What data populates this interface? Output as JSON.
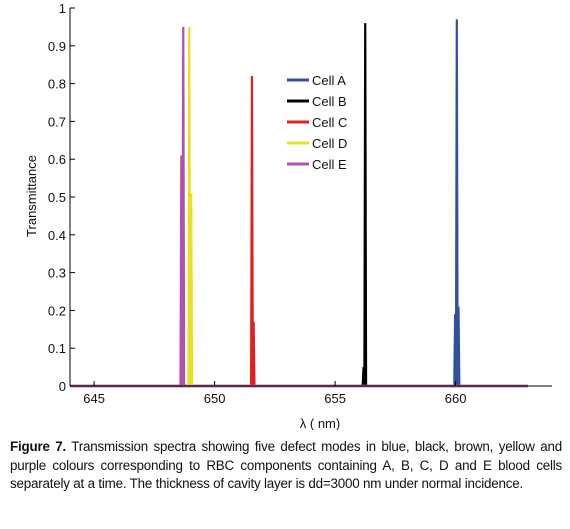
{
  "chart_data": {
    "type": "line",
    "title": "",
    "xlabel": "λ ( nm)",
    "ylabel": "Transmittance",
    "xlim": [
      644,
      664
    ],
    "ylim": [
      0,
      1
    ],
    "xticks": [
      645,
      650,
      655,
      660
    ],
    "yticks": [
      0,
      0.1,
      0.2,
      0.3,
      0.4,
      0.5,
      0.6,
      0.7,
      0.8,
      0.9,
      1
    ],
    "ytick_labels": [
      "0",
      "0.1",
      "0.2",
      "0.3",
      "0.4",
      "0.5",
      "0.6",
      "0.7",
      "0.8",
      "0.9",
      "1"
    ],
    "grid": false,
    "legend_position": "top-right",
    "data_range": [
      644,
      663
    ],
    "series": [
      {
        "name": "Cell A",
        "color": "#3050a0",
        "peaks": [
          [
            659.98,
            0.19
          ],
          [
            660.05,
            0.97
          ],
          [
            660.12,
            0.21
          ]
        ]
      },
      {
        "name": "Cell B",
        "color": "#000000",
        "peaks": [
          [
            656.18,
            0.05
          ],
          [
            656.25,
            0.96
          ]
        ]
      },
      {
        "name": "Cell C",
        "color": "#e02020",
        "peaks": [
          [
            651.55,
            0.82
          ],
          [
            651.62,
            0.17
          ]
        ]
      },
      {
        "name": "Cell D",
        "color": "#e8e020",
        "peaks": [
          [
            648.95,
            0.95
          ],
          [
            649.03,
            0.51
          ]
        ]
      },
      {
        "name": "Cell E",
        "color": "#b050b0",
        "peaks": [
          [
            648.62,
            0.61
          ],
          [
            648.7,
            0.95
          ]
        ]
      }
    ]
  },
  "caption": {
    "label": "Figure 7.",
    "text": " Transmission spectra showing five defect modes in blue, black, brown, yellow and purple colours corresponding to RBC components containing A, B, C, D and E blood cells separately at a time. The thickness of cavity layer is dd=3000 nm under normal incidence."
  }
}
